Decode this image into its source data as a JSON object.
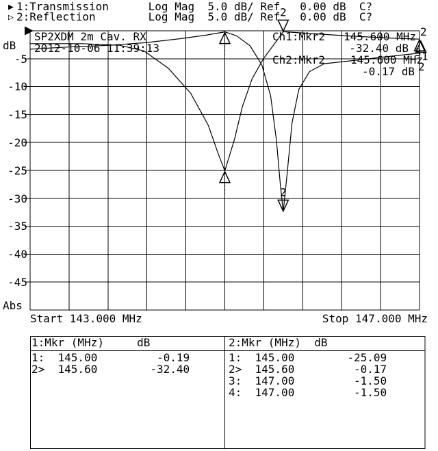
{
  "header": {
    "trace1_arrow": "▶",
    "trace1_line": "1:Transmission      Log Mag  5.0 dB/ Ref   0.00 dB  C?",
    "trace2_arrow": "▷",
    "trace2_line": "2:Reflection        Log Mag  5.0 dB/ Ref   0.00 dB  C?"
  },
  "plot": {
    "title": "SP2XDM 2m Cav. RX",
    "datetime": "2012-10-06 11:39:13",
    "ylabel_top": "dB",
    "ylabel_bottom": "Abs",
    "yticks": [
      "-5",
      "-10",
      "-15",
      "-20",
      "-25",
      "-30",
      "-35",
      "-40",
      "-45"
    ],
    "start_label": "Start 143.000 MHz",
    "stop_label": "Stop 147.000 MHz",
    "readouts": {
      "ch1_label": "Ch1:Mkr2",
      "ch1_freq": "145.600 MHz",
      "ch1_level": "-32.40 dB",
      "ch2_label": "Ch2:Mkr2",
      "ch2_freq": "145.600 MHz",
      "ch2_level": "-0.17 dB"
    },
    "edge_marker_labels": [
      "2",
      "3",
      "1",
      "2"
    ]
  },
  "tables": {
    "left": {
      "header": "1:Mkr (MHz)     dB",
      "rows": [
        "1:  145.00         -0.19",
        "2>  145.60        -32.40"
      ]
    },
    "right": {
      "header": "2:Mkr (MHz)  dB",
      "rows": [
        "1:  145.00        -25.09",
        "2>  145.60         -0.17",
        "3:  147.00         -1.50",
        "4:  147.00         -1.50"
      ]
    }
  },
  "chart_data": {
    "type": "line",
    "title": "SP2XDM 2m Cav. RX",
    "xlabel": "MHz",
    "ylabel": "dB",
    "xlim": [
      143,
      147
    ],
    "ylim": [
      -50,
      0
    ],
    "grid": true,
    "x_divisions": 10,
    "y_divisions": 10,
    "scale_per_div_db": 5.0,
    "ref_level_db": 0.0,
    "series": [
      {
        "name": "1:Transmission",
        "x": [
          143.0,
          143.39,
          143.82,
          144.2,
          144.55,
          144.8,
          145.0,
          145.12,
          145.26,
          145.38,
          145.47,
          145.53,
          145.57,
          145.6,
          145.64,
          145.69,
          145.76,
          145.87,
          146.02,
          146.28,
          146.63,
          147.0
        ],
        "y": [
          -3.3,
          -2.9,
          -2.6,
          -2.1,
          -1.4,
          -0.8,
          -0.19,
          -0.9,
          -2.7,
          -6.1,
          -11.6,
          -19.6,
          -27.5,
          -32.4,
          -25.7,
          -16.5,
          -10.5,
          -7.3,
          -5.9,
          -5.4,
          -4.7,
          -4.0
        ]
      },
      {
        "name": "2:Reflection",
        "x": [
          143.0,
          143.53,
          143.92,
          144.17,
          144.42,
          144.65,
          144.83,
          144.93,
          145.0,
          145.1,
          145.18,
          145.28,
          145.4,
          145.52,
          145.6,
          145.89,
          146.28,
          146.7,
          147.0
        ],
        "y": [
          -2.3,
          -2.3,
          -2.6,
          -3.6,
          -6.7,
          -11.2,
          -16.9,
          -21.9,
          -25.09,
          -19.4,
          -13.6,
          -8.6,
          -4.9,
          -2.1,
          -0.17,
          -0.49,
          -0.93,
          -1.3,
          -1.5
        ]
      }
    ],
    "markers": [
      {
        "channel": 1,
        "n": "1",
        "f": 145.0,
        "db": -0.19,
        "style": "below",
        "stem": true,
        "label": ""
      },
      {
        "channel": 1,
        "n": "2",
        "f": 145.6,
        "db": -32.4,
        "style": "above",
        "stem": false,
        "label": "2"
      },
      {
        "channel": 2,
        "n": "1",
        "f": 145.0,
        "db": -25.09,
        "style": "below",
        "stem": true,
        "label": ""
      },
      {
        "channel": 2,
        "n": "2",
        "f": 145.6,
        "db": -0.17,
        "style": "above",
        "stem": false,
        "label": "2"
      },
      {
        "channel": 2,
        "n": "3",
        "f": 147.0,
        "db": -1.5,
        "style": "below",
        "stem": false,
        "label": ""
      },
      {
        "channel": 2,
        "n": "4",
        "f": 147.0,
        "db": -1.5,
        "style": "below",
        "stem": false,
        "label": ""
      }
    ]
  }
}
